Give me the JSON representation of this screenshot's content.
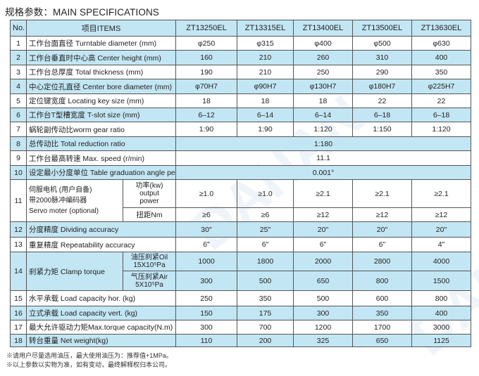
{
  "title": "规格参数：MAIN SPECIFICATIONS",
  "header": {
    "no": "No.",
    "items": "项目ITEMS",
    "models": [
      "ZT13250EL",
      "ZT13315EL",
      "ZT13400EL",
      "ZT13500EL",
      "ZT13630EL"
    ]
  },
  "rows": [
    {
      "no": "1",
      "item": "工作台面直径  Turntable diameter (mm)",
      "values": [
        "φ250",
        "φ315",
        "φ400",
        "φ500",
        "φ630"
      ]
    },
    {
      "no": "2",
      "item": "工作台垂直时中心高  Center height (mm)",
      "values": [
        "160",
        "210",
        "260",
        "310",
        "400"
      ]
    },
    {
      "no": "3",
      "item": "工作台总厚度  Total thickness (mm)",
      "values": [
        "190",
        "210",
        "250",
        "290",
        "350"
      ]
    },
    {
      "no": "4",
      "item": "中心定位孔直径  Center bore diameter (mm)",
      "values": [
        "φ70H7",
        "φ90H7",
        "φ130H7",
        "φ180H7",
        "φ225H7"
      ]
    },
    {
      "no": "5",
      "item": "定位键宽度  Locating key size (mm)",
      "values": [
        "18",
        "18",
        "18",
        "22",
        "22"
      ]
    },
    {
      "no": "6",
      "item": "工作台T型槽宽度  T-slot size (mm)",
      "values": [
        "6–12",
        "6–14",
        "6–14",
        "6–18",
        "6–18"
      ]
    },
    {
      "no": "7",
      "item": "蜗轮副传动比worm gear ratio",
      "values": [
        "1:90",
        "1:90",
        "1:120",
        "1:150",
        "1:120"
      ]
    },
    {
      "no": "8",
      "item": "总传动比  Total reduction ratio",
      "value": "1:180"
    },
    {
      "no": "9",
      "item": "工作台最高转速  Max. speed  (r/min)",
      "value": "11.1"
    },
    {
      "no": "10",
      "item": "设定最小分度单位 Table graduation angle per pulse",
      "value": "0.001°"
    }
  ],
  "servo": {
    "no": "11",
    "item_lines": [
      "伺服电机 (用户自备)",
      "带2000脉冲编码器",
      "Servo moter (optional)"
    ],
    "power_label_lines": [
      "功率(kw)",
      "output",
      "power"
    ],
    "power_values": [
      "≥1.0",
      "≥1.0",
      "≥2.1",
      "≥2.1",
      "≥2.1"
    ],
    "torque_label": "扭距Nm",
    "torque_values": [
      "≥6",
      "≥6",
      "≥12",
      "≥12",
      "≥12"
    ]
  },
  "rows2": [
    {
      "no": "12",
      "item": "分度精度  Dividing accuracy",
      "values": [
        "30\"",
        "25\"",
        "20\"",
        "20\"",
        "20\""
      ]
    },
    {
      "no": "13",
      "item": "重复精度  Repeatability accuracy",
      "values": [
        "6\"",
        "6\"",
        "6\"",
        "6\"",
        "4\""
      ]
    }
  ],
  "clamp": {
    "no": "14",
    "item": "刹紧力矩  Clamp torque",
    "oil_label_lines": [
      "油压刹紧Oil",
      "15X10⁵Pa"
    ],
    "oil_values": [
      "1000",
      "1800",
      "2000",
      "2800",
      "4000"
    ],
    "air_label_lines": [
      "气压刹紧Air",
      "5X10⁵Pa"
    ],
    "air_values": [
      "300",
      "500",
      "650",
      "800",
      "1500"
    ]
  },
  "rows3": [
    {
      "no": "15",
      "item": "水平承载  Load capacity hor.  (kg)",
      "values": [
        "250",
        "350",
        "500",
        "600",
        "800"
      ]
    },
    {
      "no": "16",
      "item": "立式承载  Load capacity vert.  (kg)",
      "values": [
        "150",
        "175",
        "300",
        "350",
        "400"
      ]
    },
    {
      "no": "17",
      "item": "最大允许驱动力矩Max.torque capacity(N.m)",
      "values": [
        "300",
        "700",
        "1200",
        "1700",
        "3000"
      ]
    },
    {
      "no": "18",
      "item": "转台重量  Net weight(kg)",
      "values": [
        "110",
        "200",
        "325",
        "650",
        "1125"
      ]
    }
  ],
  "notes": [
    "※请用户尽量选用油压，最大使用油压为：推荐值+1MPa。",
    "※以上参数以实物为准，如有变动，最终解释权归本公司。"
  ],
  "watermark": "DAHAN"
}
